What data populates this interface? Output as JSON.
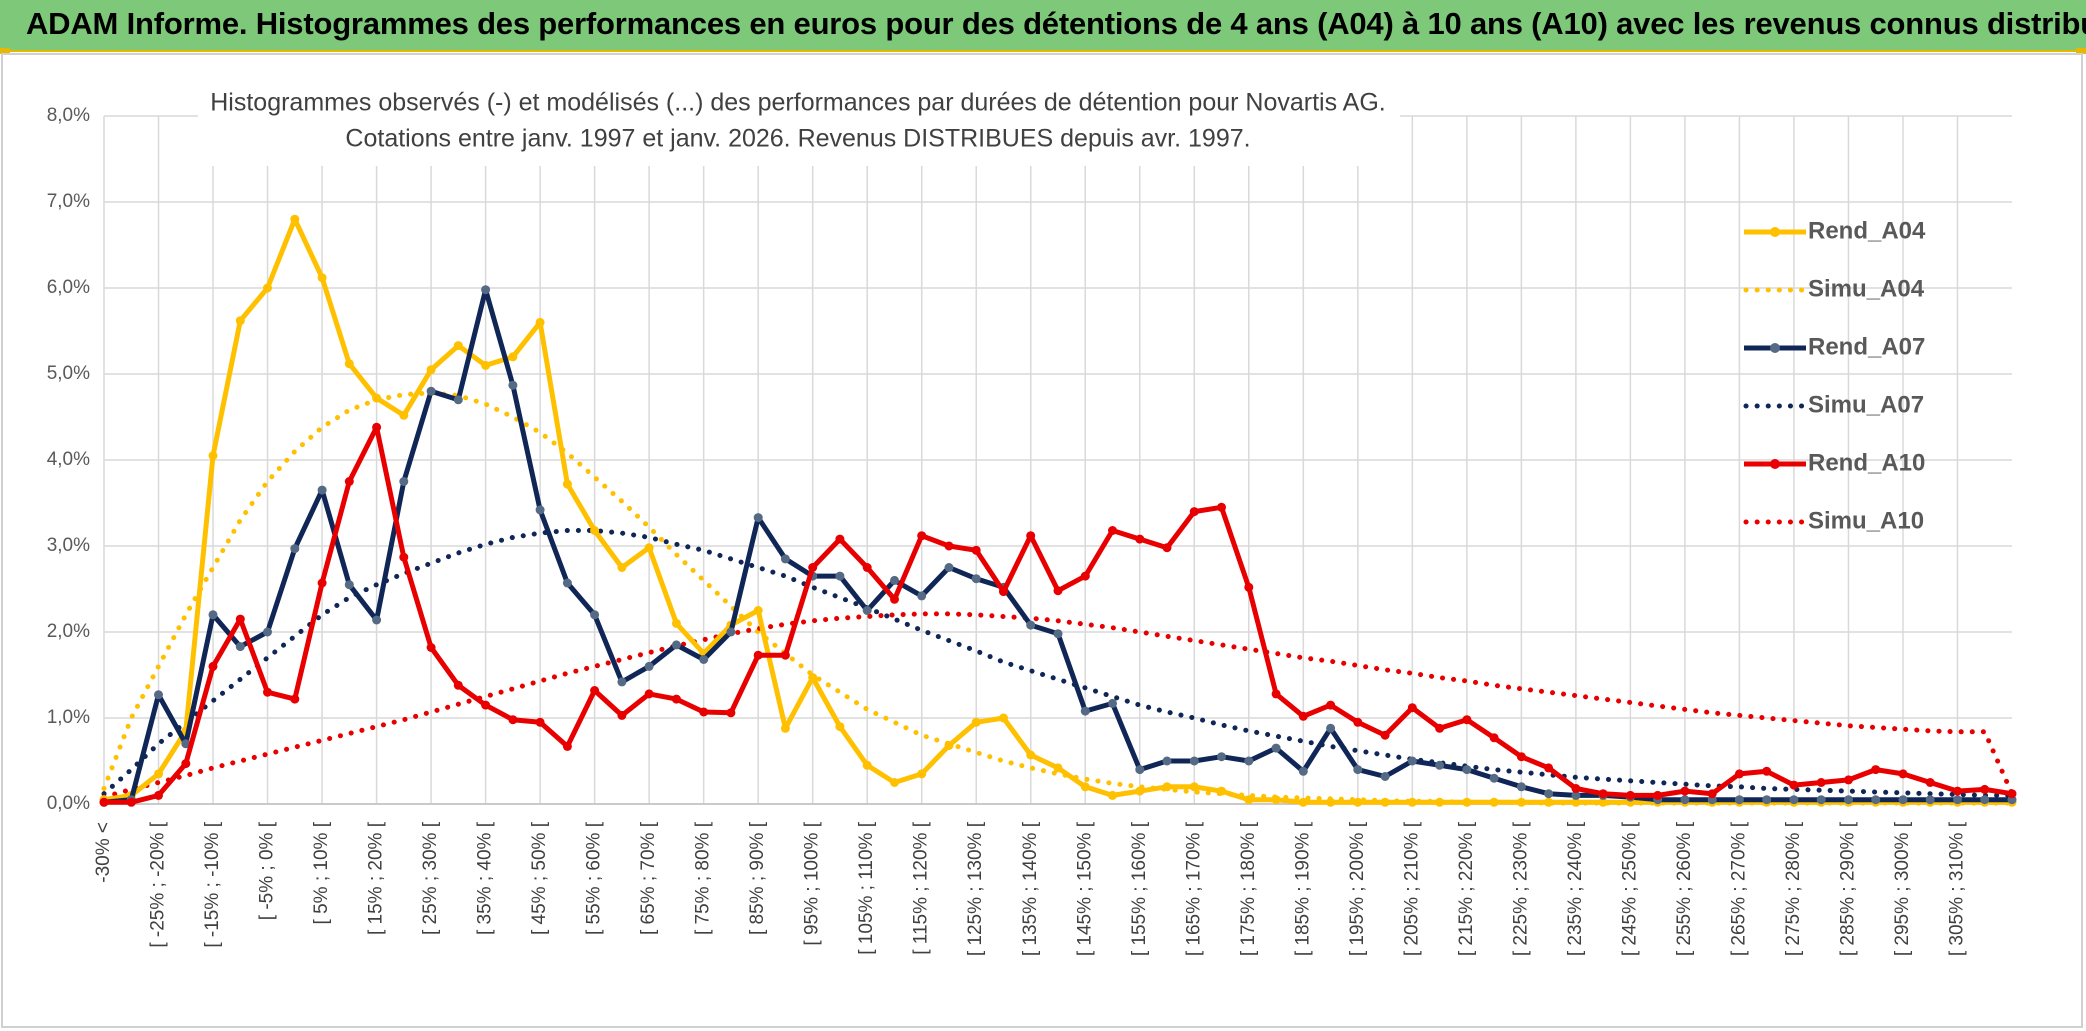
{
  "header": {
    "title": "ADAM Informe. Histogrammes des performances en euros pour des détentions de 4 ans (A04) à 10 ans (A10) avec les revenus connus distribués"
  },
  "chart_data": {
    "type": "line",
    "title": "Histogrammes observés (-) et modélisés (...) des performances par durées de détention pour Novartis AG.",
    "subtitle": "Cotations entre janv. 1997 et janv. 2026. Revenus DISTRIBUES depuis avr. 1997.",
    "xlabel": "",
    "ylabel": "",
    "ylim": [
      0,
      8
    ],
    "yticks": [
      "0,0%",
      "1,0%",
      "2,0%",
      "3,0%",
      "4,0%",
      "5,0%",
      "6,0%",
      "7,0%",
      "8,0%"
    ],
    "grid": true,
    "legend_position": "right",
    "x_labels": [
      "-30% <",
      "[ -25% ; -20% [",
      "[ -15% ; -10% [",
      "[ -5% ; 0% [",
      "[ 5% ; 10% [",
      "[ 15% ; 20% [",
      "[ 25% ; 30% [",
      "[ 35% ; 40% [",
      "[ 45% ; 50% [",
      "[ 55% ; 60% [",
      "[ 65% ; 70% [",
      "[ 75% ; 80% [",
      "[ 85% ; 90% [",
      "[ 95% ; 100% [",
      "[ 105% ; 110% [",
      "[ 115% ; 120% [",
      "[ 125% ; 130% [",
      "[ 135% ; 140% [",
      "[ 145% ; 150% [",
      "[ 155% ; 160% [",
      "[ 165% ; 170% [",
      "[ 175% ; 180% [",
      "[ 185% ; 190% [",
      "[ 195% ; 200% [",
      "[ 205% ; 210% [",
      "[ 215% ; 220% [",
      "[ 225% ; 230% [",
      "[ 235% ; 240% [",
      "[ 245% ; 250% [",
      "[ 255% ; 260% [",
      "[ 265% ; 270% [",
      "[ 275% ; 280% [",
      "[ 285% ; 290% [",
      "[ 295% ; 300% [",
      "[ 305% ; 310% ["
    ],
    "series": [
      {
        "name": "Rend_A04",
        "style": "solid",
        "color": "#FFC000",
        "values": [
          0.05,
          0.1,
          0.35,
          0.85,
          4.05,
          5.62,
          6.0,
          6.8,
          6.12,
          5.12,
          4.72,
          4.52,
          5.05,
          5.33,
          5.1,
          5.2,
          5.6,
          3.72,
          3.18,
          2.75,
          2.98,
          2.1,
          1.75,
          2.08,
          2.25,
          0.88,
          1.47,
          0.9,
          0.45,
          0.25,
          0.35,
          0.68,
          0.95,
          1.0,
          0.57,
          0.42,
          0.2,
          0.1,
          0.15,
          0.2,
          0.2,
          0.15,
          0.05,
          0.05,
          0.02,
          0.02,
          0.02,
          0.02,
          0.02,
          0.02,
          0.02,
          0.02,
          0.02,
          0.02,
          0.02,
          0.02,
          0.02,
          0.02,
          0.02,
          0.02,
          0.02,
          0.02,
          0.02,
          0.02,
          0.02,
          0.02,
          0.02,
          0.02,
          0.02,
          0.02,
          0.02
        ]
      },
      {
        "name": "Simu_A04",
        "style": "dotted",
        "color": "#FFC000",
        "values": [
          0.18,
          1.0,
          1.6,
          2.2,
          2.75,
          3.3,
          3.75,
          4.1,
          4.38,
          4.58,
          4.7,
          4.76,
          4.78,
          4.75,
          4.65,
          4.5,
          4.32,
          4.08,
          3.8,
          3.52,
          3.22,
          2.9,
          2.6,
          2.3,
          2.0,
          1.75,
          1.5,
          1.3,
          1.1,
          0.95,
          0.8,
          0.7,
          0.6,
          0.5,
          0.42,
          0.35,
          0.29,
          0.24,
          0.2,
          0.17,
          0.14,
          0.12,
          0.1,
          0.08,
          0.07,
          0.06,
          0.05,
          0.04,
          0.03,
          0.03,
          0.02,
          0.02,
          0.02,
          0.01,
          0.01,
          0.01,
          0.01,
          0.01,
          0.01,
          0.01,
          0.01,
          0.01,
          0.01,
          0.01,
          0.01,
          0.01,
          0.01,
          0.01,
          0.01,
          0.01,
          0.01
        ]
      },
      {
        "name": "Rend_A07",
        "style": "solid",
        "color": "#0F2657",
        "values": [
          0.02,
          0.05,
          1.27,
          0.7,
          2.2,
          1.83,
          2.0,
          2.97,
          3.65,
          2.55,
          2.14,
          3.75,
          4.8,
          4.7,
          5.98,
          4.87,
          3.42,
          2.57,
          2.2,
          1.42,
          1.6,
          1.85,
          1.68,
          2.0,
          3.33,
          2.85,
          2.65,
          2.65,
          2.25,
          2.6,
          2.42,
          2.75,
          2.62,
          2.52,
          2.08,
          1.98,
          1.08,
          1.17,
          0.4,
          0.5,
          0.5,
          0.55,
          0.5,
          0.65,
          0.38,
          0.88,
          0.4,
          0.32,
          0.5,
          0.45,
          0.4,
          0.3,
          0.2,
          0.12,
          0.1,
          0.1,
          0.08,
          0.05,
          0.05,
          0.05,
          0.05,
          0.05,
          0.05,
          0.05,
          0.05,
          0.05,
          0.05,
          0.05,
          0.05,
          0.05,
          0.05
        ]
      },
      {
        "name": "Simu_A07",
        "style": "dotted",
        "color": "#0F2657",
        "values": [
          0.12,
          0.4,
          0.7,
          0.95,
          1.2,
          1.45,
          1.7,
          1.95,
          2.2,
          2.4,
          2.55,
          2.68,
          2.8,
          2.92,
          3.02,
          3.1,
          3.15,
          3.18,
          3.18,
          3.15,
          3.1,
          3.02,
          2.95,
          2.85,
          2.75,
          2.65,
          2.52,
          2.4,
          2.28,
          2.15,
          2.02,
          1.9,
          1.78,
          1.65,
          1.55,
          1.45,
          1.35,
          1.25,
          1.15,
          1.07,
          1.0,
          0.92,
          0.85,
          0.79,
          0.73,
          0.67,
          0.62,
          0.57,
          0.52,
          0.48,
          0.44,
          0.4,
          0.37,
          0.34,
          0.31,
          0.29,
          0.27,
          0.25,
          0.23,
          0.21,
          0.2,
          0.18,
          0.17,
          0.16,
          0.15,
          0.14,
          0.13,
          0.12,
          0.11,
          0.1,
          0.1
        ]
      },
      {
        "name": "Rend_A10",
        "style": "solid",
        "color": "#E80000",
        "values": [
          0.02,
          0.02,
          0.1,
          0.47,
          1.6,
          2.15,
          1.3,
          1.22,
          2.57,
          3.75,
          4.38,
          2.87,
          1.82,
          1.38,
          1.15,
          0.98,
          0.95,
          0.67,
          1.32,
          1.03,
          1.28,
          1.22,
          1.07,
          1.06,
          1.73,
          1.73,
          2.75,
          3.08,
          2.75,
          2.38,
          3.12,
          3.0,
          2.95,
          2.47,
          3.12,
          2.48,
          2.65,
          3.18,
          3.08,
          2.98,
          3.4,
          3.45,
          2.52,
          1.28,
          1.02,
          1.15,
          0.95,
          0.8,
          1.12,
          0.88,
          0.98,
          0.77,
          0.55,
          0.42,
          0.18,
          0.12,
          0.1,
          0.1,
          0.15,
          0.12,
          0.35,
          0.38,
          0.22,
          0.25,
          0.28,
          0.4,
          0.35,
          0.25,
          0.15,
          0.17,
          0.12
        ]
      },
      {
        "name": "Simu_A10",
        "style": "dotted",
        "color": "#E80000",
        "values": [
          0.08,
          0.17,
          0.25,
          0.33,
          0.42,
          0.5,
          0.58,
          0.66,
          0.74,
          0.82,
          0.9,
          0.98,
          1.07,
          1.16,
          1.25,
          1.34,
          1.43,
          1.52,
          1.6,
          1.68,
          1.76,
          1.84,
          1.91,
          1.98,
          2.04,
          2.09,
          2.13,
          2.16,
          2.18,
          2.2,
          2.21,
          2.21,
          2.2,
          2.18,
          2.16,
          2.13,
          2.09,
          2.05,
          2.0,
          1.95,
          1.9,
          1.85,
          1.8,
          1.75,
          1.7,
          1.66,
          1.61,
          1.56,
          1.52,
          1.47,
          1.43,
          1.38,
          1.34,
          1.3,
          1.26,
          1.22,
          1.18,
          1.14,
          1.1,
          1.06,
          1.03,
          1.0,
          0.97,
          0.94,
          0.91,
          0.89,
          0.87,
          0.85,
          0.84,
          0.84,
          0.12
        ]
      }
    ]
  }
}
